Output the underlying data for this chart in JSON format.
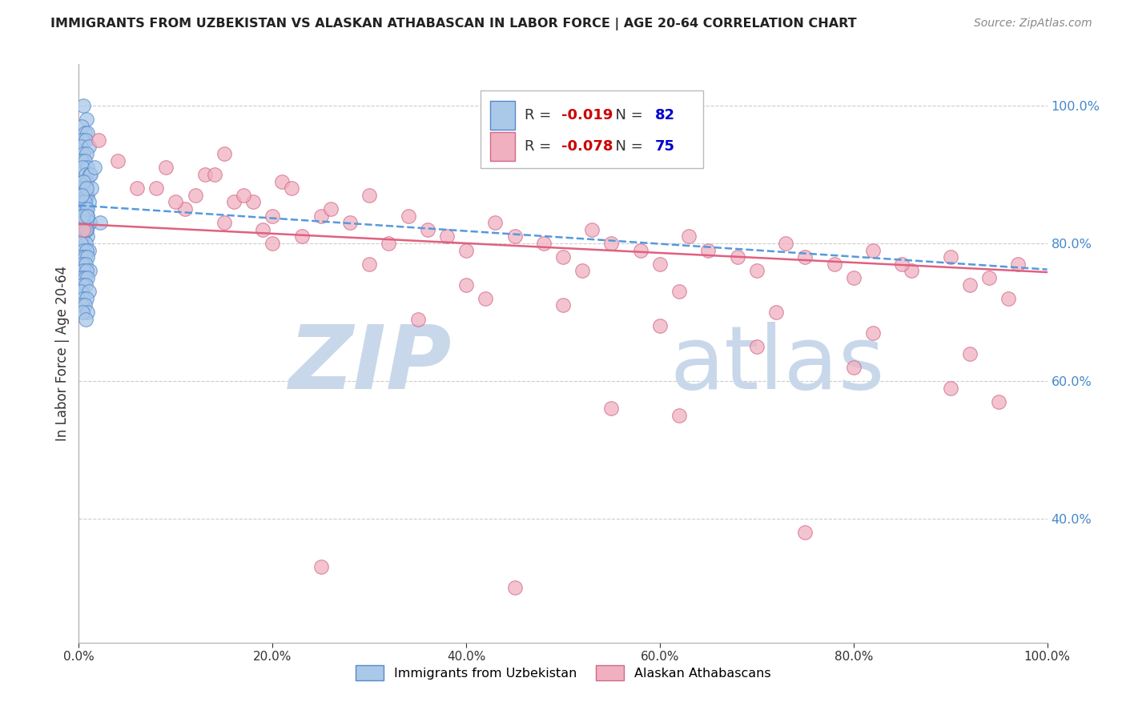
{
  "title": "IMMIGRANTS FROM UZBEKISTAN VS ALASKAN ATHABASCAN IN LABOR FORCE | AGE 20-64 CORRELATION CHART",
  "source_text": "Source: ZipAtlas.com",
  "ylabel": "In Labor Force | Age 20-64",
  "xlim": [
    0.0,
    1.0
  ],
  "ylim": [
    0.22,
    1.06
  ],
  "x_tick_labels": [
    "0.0%",
    "20.0%",
    "40.0%",
    "60.0%",
    "80.0%",
    "100.0%"
  ],
  "x_tick_vals": [
    0.0,
    0.2,
    0.4,
    0.6,
    0.8,
    1.0
  ],
  "y_tick_labels": [
    "40.0%",
    "60.0%",
    "80.0%",
    "100.0%"
  ],
  "y_tick_vals": [
    0.4,
    0.6,
    0.8,
    1.0
  ],
  "blue_label": "Immigrants from Uzbekistan",
  "pink_label": "Alaskan Athabascans",
  "blue_R": "-0.019",
  "blue_N": "82",
  "pink_R": "-0.078",
  "pink_N": "75",
  "r_color": "#cc0000",
  "n_color": "#0000cc",
  "watermark_zip": "ZIP",
  "watermark_atlas": "atlas",
  "watermark_color": "#c8d8ea",
  "blue_scatter_color": "#aac8e8",
  "blue_scatter_edge": "#5588cc",
  "pink_scatter_color": "#f0b0c0",
  "pink_scatter_edge": "#d06888",
  "blue_line_color": "#5599dd",
  "pink_line_color": "#e06080",
  "grid_color": "#cccccc",
  "right_axis_color": "#4488cc",
  "blue_points_x": [
    0.005,
    0.008,
    0.003,
    0.006,
    0.009,
    0.004,
    0.007,
    0.002,
    0.01,
    0.005,
    0.008,
    0.003,
    0.006,
    0.009,
    0.004,
    0.007,
    0.011,
    0.005,
    0.008,
    0.003,
    0.006,
    0.009,
    0.004,
    0.007,
    0.002,
    0.01,
    0.005,
    0.008,
    0.003,
    0.006,
    0.009,
    0.004,
    0.007,
    0.011,
    0.005,
    0.008,
    0.003,
    0.006,
    0.009,
    0.004,
    0.007,
    0.002,
    0.01,
    0.005,
    0.008,
    0.003,
    0.006,
    0.009,
    0.004,
    0.007,
    0.011,
    0.005,
    0.008,
    0.003,
    0.006,
    0.009,
    0.004,
    0.007,
    0.002,
    0.01,
    0.005,
    0.008,
    0.003,
    0.006,
    0.009,
    0.004,
    0.007,
    0.011,
    0.005,
    0.008,
    0.013,
    0.006,
    0.009,
    0.004,
    0.007,
    0.012,
    0.005,
    0.008,
    0.003,
    0.016,
    0.009,
    0.022
  ],
  "blue_points_y": [
    1.0,
    0.98,
    0.97,
    0.96,
    0.96,
    0.95,
    0.95,
    0.94,
    0.94,
    0.93,
    0.93,
    0.92,
    0.92,
    0.91,
    0.91,
    0.9,
    0.9,
    0.89,
    0.89,
    0.88,
    0.88,
    0.87,
    0.87,
    0.87,
    0.86,
    0.86,
    0.86,
    0.85,
    0.85,
    0.85,
    0.84,
    0.84,
    0.84,
    0.83,
    0.83,
    0.82,
    0.82,
    0.82,
    0.81,
    0.81,
    0.8,
    0.8,
    0.79,
    0.79,
    0.79,
    0.78,
    0.78,
    0.78,
    0.77,
    0.77,
    0.76,
    0.76,
    0.76,
    0.75,
    0.75,
    0.75,
    0.74,
    0.74,
    0.73,
    0.73,
    0.72,
    0.72,
    0.71,
    0.71,
    0.7,
    0.7,
    0.69,
    0.83,
    0.83,
    0.82,
    0.88,
    0.86,
    0.85,
    0.84,
    0.82,
    0.9,
    0.89,
    0.88,
    0.87,
    0.91,
    0.84,
    0.83
  ],
  "pink_points_x": [
    0.005,
    0.02,
    0.04,
    0.06,
    0.09,
    0.12,
    0.15,
    0.18,
    0.21,
    0.25,
    0.13,
    0.16,
    0.19,
    0.22,
    0.26,
    0.3,
    0.34,
    0.38,
    0.43,
    0.48,
    0.53,
    0.58,
    0.63,
    0.68,
    0.73,
    0.78,
    0.82,
    0.86,
    0.9,
    0.94,
    0.97,
    0.08,
    0.11,
    0.14,
    0.17,
    0.2,
    0.23,
    0.28,
    0.32,
    0.36,
    0.4,
    0.45,
    0.5,
    0.55,
    0.6,
    0.65,
    0.7,
    0.75,
    0.8,
    0.85,
    0.92,
    0.96,
    0.1,
    0.15,
    0.2,
    0.3,
    0.4,
    0.5,
    0.6,
    0.7,
    0.8,
    0.9,
    0.52,
    0.62,
    0.72,
    0.82,
    0.92,
    0.42,
    0.62,
    0.35,
    0.55,
    0.75,
    0.95,
    0.25,
    0.45
  ],
  "pink_points_y": [
    0.82,
    0.95,
    0.92,
    0.88,
    0.91,
    0.87,
    0.93,
    0.86,
    0.89,
    0.84,
    0.9,
    0.86,
    0.82,
    0.88,
    0.85,
    0.87,
    0.84,
    0.81,
    0.83,
    0.8,
    0.82,
    0.79,
    0.81,
    0.78,
    0.8,
    0.77,
    0.79,
    0.76,
    0.78,
    0.75,
    0.77,
    0.88,
    0.85,
    0.9,
    0.87,
    0.84,
    0.81,
    0.83,
    0.8,
    0.82,
    0.79,
    0.81,
    0.78,
    0.8,
    0.77,
    0.79,
    0.76,
    0.78,
    0.75,
    0.77,
    0.74,
    0.72,
    0.86,
    0.83,
    0.8,
    0.77,
    0.74,
    0.71,
    0.68,
    0.65,
    0.62,
    0.59,
    0.76,
    0.73,
    0.7,
    0.67,
    0.64,
    0.72,
    0.55,
    0.69,
    0.56,
    0.38,
    0.57,
    0.33,
    0.3
  ],
  "blue_trend_x": [
    0.0,
    1.0
  ],
  "blue_trend_y": [
    0.855,
    0.762
  ],
  "pink_trend_x": [
    0.0,
    1.0
  ],
  "pink_trend_y": [
    0.828,
    0.758
  ]
}
